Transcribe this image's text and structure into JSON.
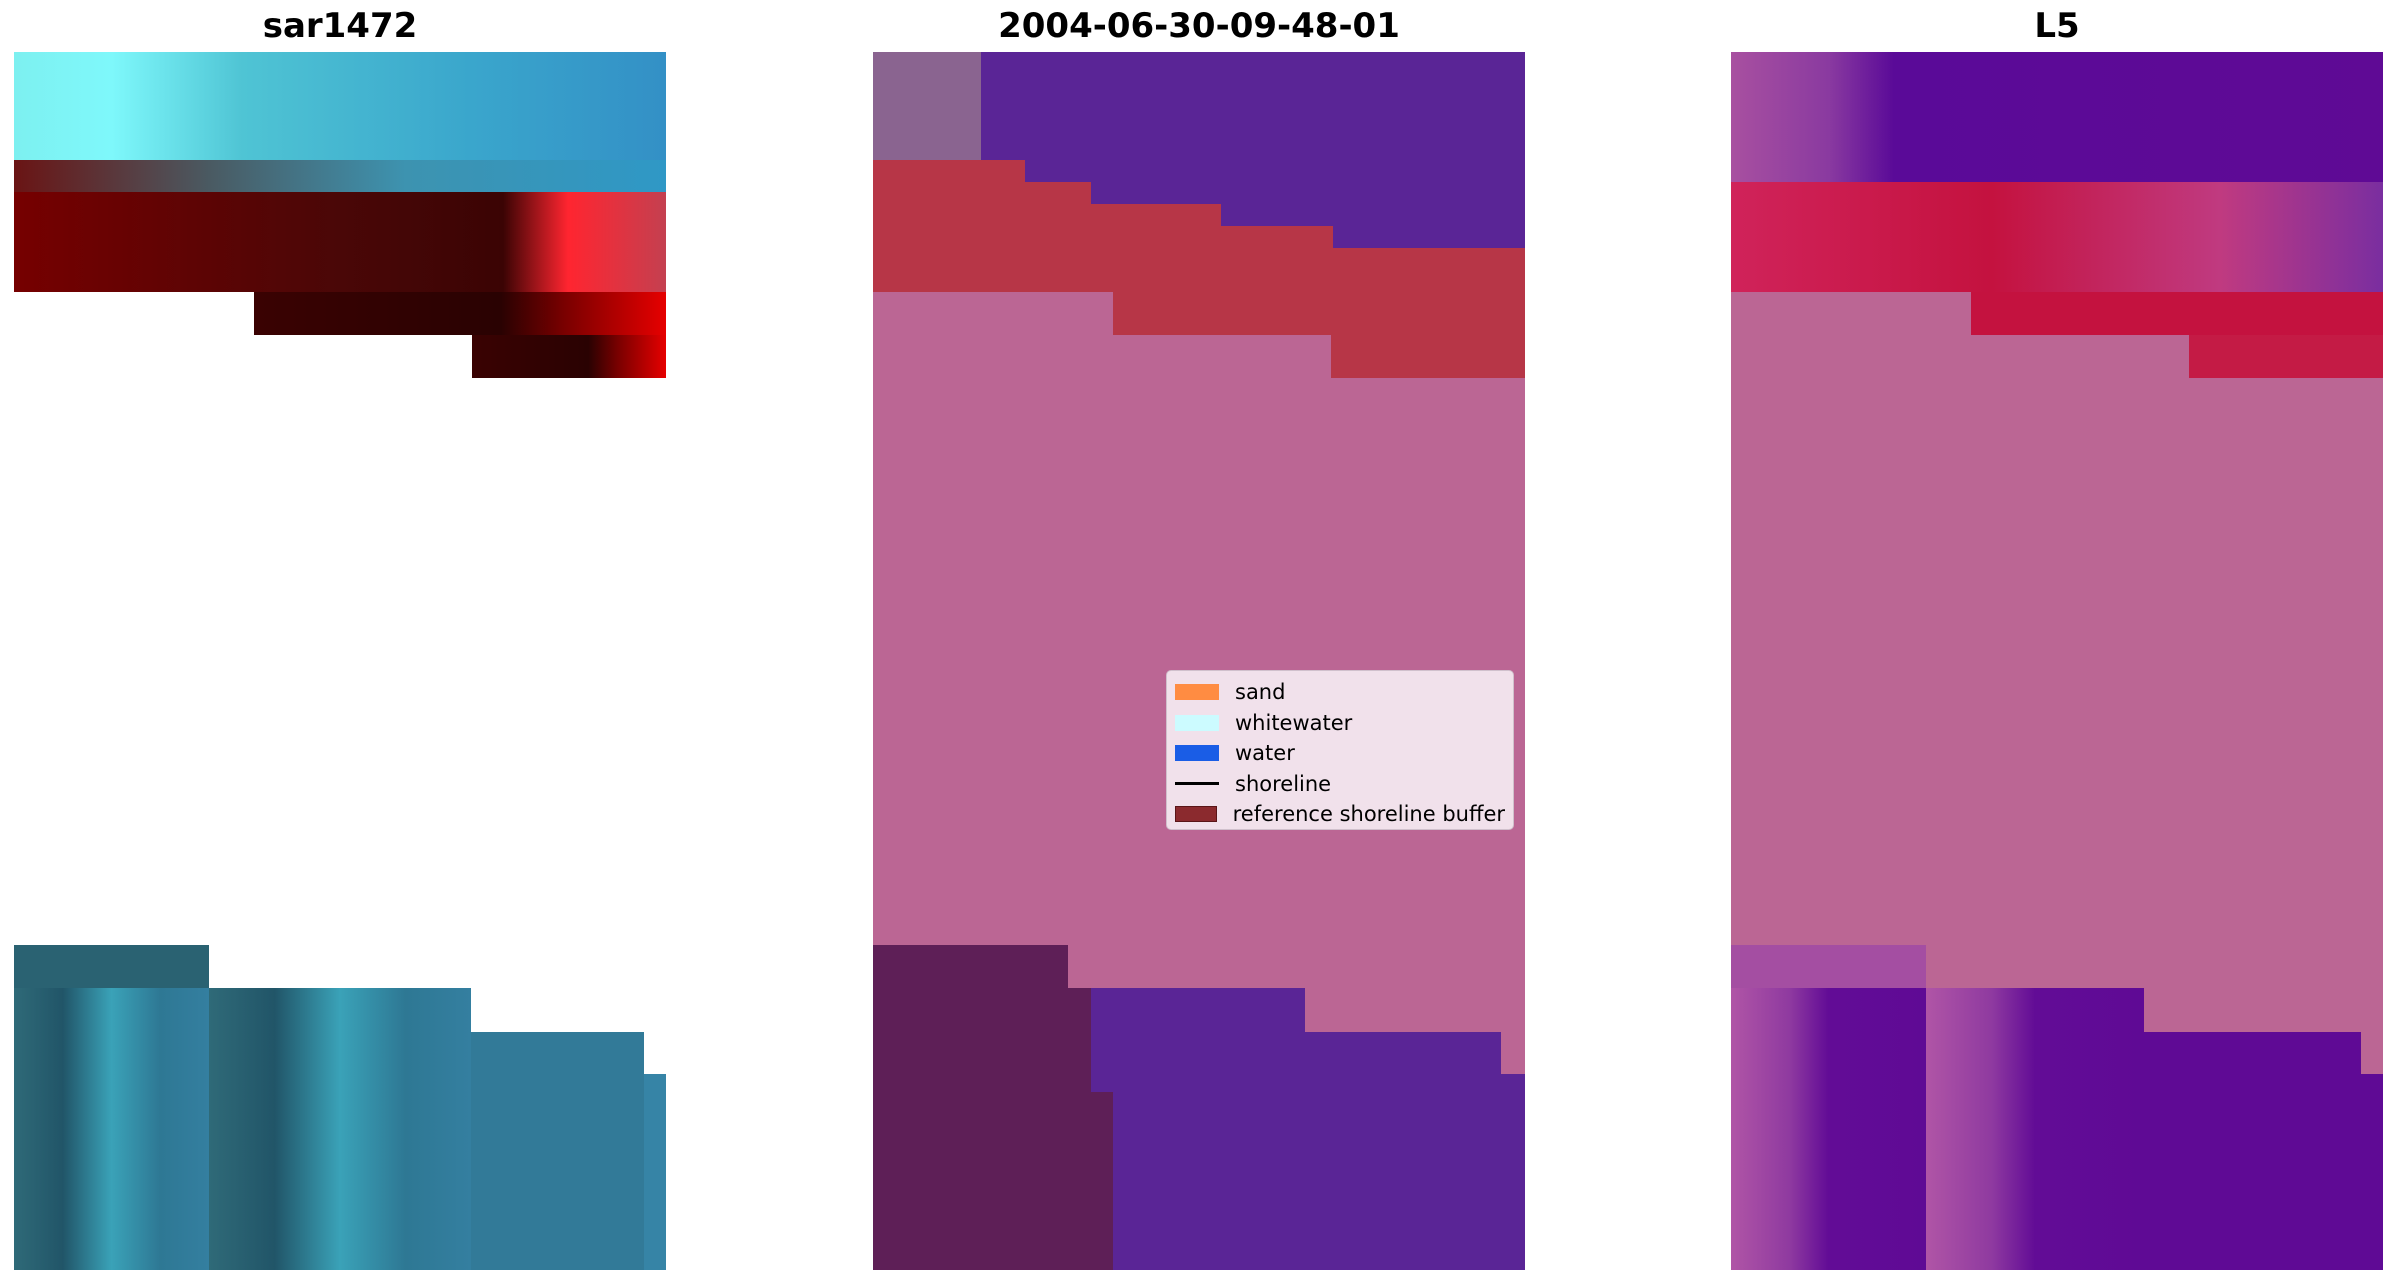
{
  "panels": [
    {
      "title": "sar1472"
    },
    {
      "title": "2004-06-30-09-48-01"
    },
    {
      "title": "L5"
    }
  ],
  "legend": {
    "items": [
      {
        "label": "sand",
        "type": "patch",
        "color": "#ff8c42"
      },
      {
        "label": "whitewater",
        "type": "patch",
        "color": "#ccfbff"
      },
      {
        "label": "water",
        "type": "patch",
        "color": "#1a5de6"
      },
      {
        "label": "shoreline",
        "type": "line",
        "color": "#000000"
      },
      {
        "label": "reference shoreline buffer",
        "type": "patch",
        "color": "#8b2a2e"
      }
    ]
  },
  "colors": {
    "classified_purple": "#5a2596",
    "classified_pink": "#bb6694",
    "classified_red": "#b73647",
    "l5_pink": "#bb6694",
    "l5_purple": "#5f0a95",
    "l5_red": "#c4123f"
  }
}
